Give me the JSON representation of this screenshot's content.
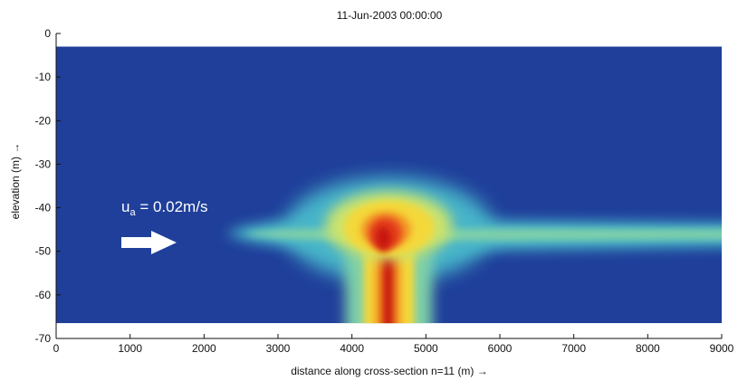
{
  "chart_data": {
    "type": "heatmap",
    "title": "11-Jun-2003 00:00:00",
    "xlabel": "distance along cross-section n=11 (m) →",
    "ylabel": "elevation (m) →",
    "xlim": [
      0,
      9000
    ],
    "ylim": [
      -70,
      0
    ],
    "x_ticks": [
      0,
      1000,
      2000,
      3000,
      4000,
      5000,
      6000,
      7000,
      8000,
      9000
    ],
    "y_ticks": [
      0,
      -10,
      -20,
      -30,
      -40,
      -50,
      -60,
      -70
    ],
    "field_extent": {
      "x": [
        0,
        9000
      ],
      "y": [
        -66.5,
        -3
      ]
    },
    "colormap": [
      "#1a3b96",
      "#1f57b8",
      "#2f86d0",
      "#46b4c9",
      "#7fd0a8",
      "#cbe36d",
      "#f4d83a",
      "#f39a26",
      "#e5421c",
      "#c81410"
    ],
    "background_color": "#1f3f9a",
    "features": [
      {
        "kind": "horizontal-plume",
        "x_range": [
          2300,
          9000
        ],
        "center_y": -46,
        "intensity": 0.45
      },
      {
        "kind": "core",
        "center_x": 4500,
        "center_y": -45,
        "intensity": 1.0
      },
      {
        "kind": "vertical-column",
        "center_x": 4500,
        "y_range": [
          -66.5,
          -50
        ],
        "intensity": 0.95
      }
    ],
    "annotation": {
      "text_base": "u",
      "text_sub": "a",
      "text_rest": " = 0.02m/s",
      "arrow_direction": "right",
      "color": "#ffffff"
    }
  }
}
